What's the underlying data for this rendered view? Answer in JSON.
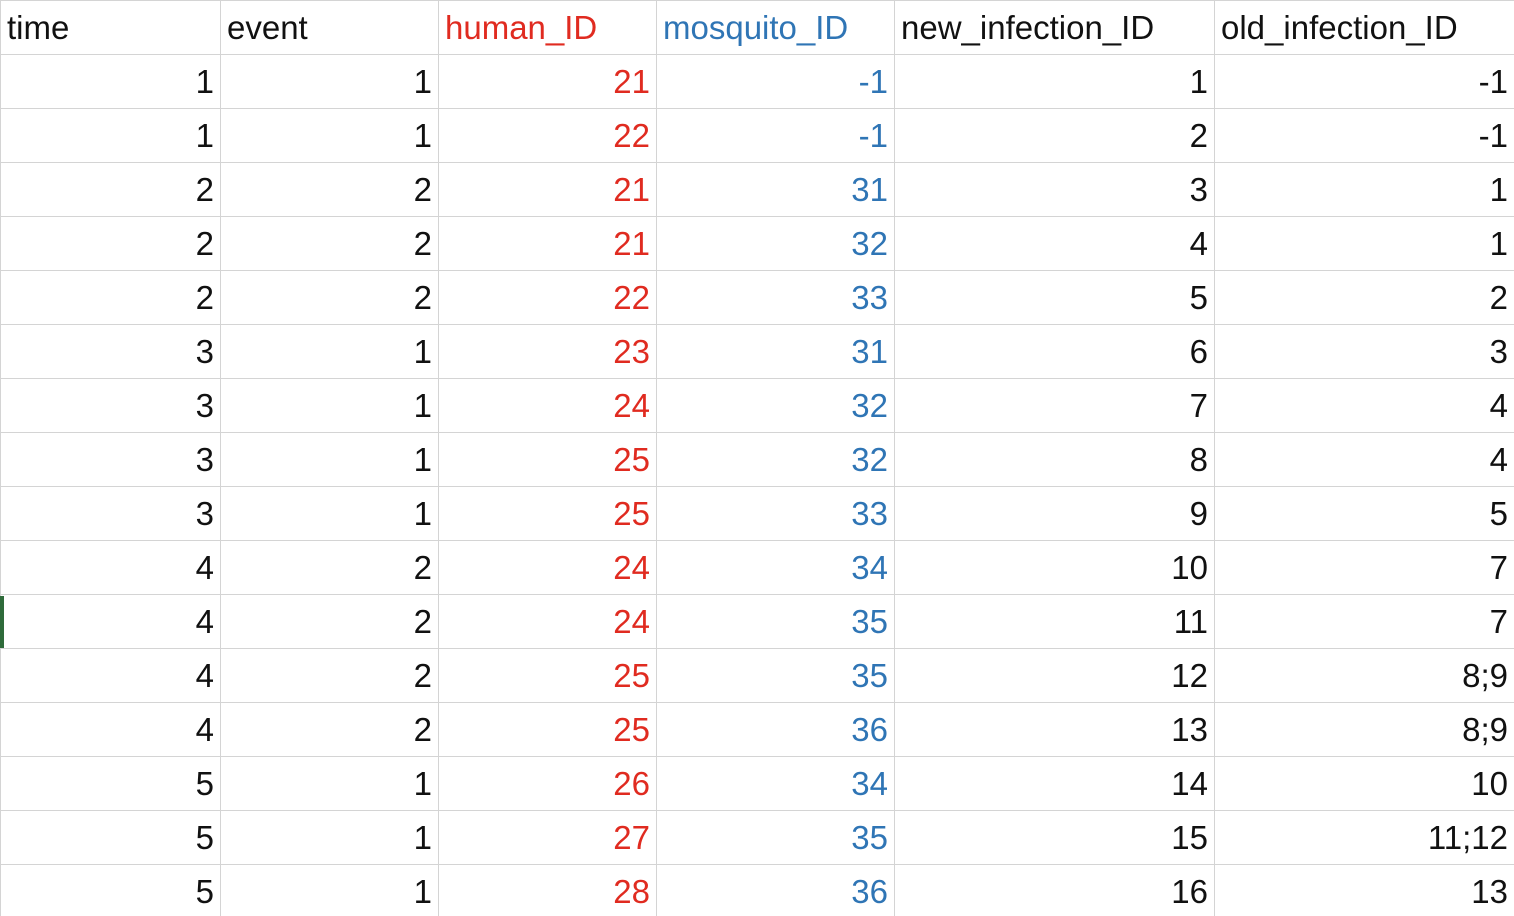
{
  "colors": {
    "default_text": "#111111",
    "human_id_text": "#e02b20",
    "mosquito_id_text": "#2f75b5",
    "gridline": "#d4d4d4",
    "active_row_marker": "#2e6b3a"
  },
  "columns": [
    {
      "key": "time",
      "label": "time",
      "color": "#111111"
    },
    {
      "key": "event",
      "label": "event",
      "color": "#111111"
    },
    {
      "key": "human_ID",
      "label": "human_ID",
      "color": "#e02b20"
    },
    {
      "key": "mosquito_ID",
      "label": "mosquito_ID",
      "color": "#2f75b5"
    },
    {
      "key": "new_infection_ID",
      "label": "new_infection_ID",
      "color": "#111111"
    },
    {
      "key": "old_infection_ID",
      "label": "old_infection_ID",
      "color": "#111111"
    }
  ],
  "rows": [
    [
      "1",
      "1",
      "21",
      "-1",
      "1",
      "-1"
    ],
    [
      "1",
      "1",
      "22",
      "-1",
      "2",
      "-1"
    ],
    [
      "2",
      "2",
      "21",
      "31",
      "3",
      "1"
    ],
    [
      "2",
      "2",
      "21",
      "32",
      "4",
      "1"
    ],
    [
      "2",
      "2",
      "22",
      "33",
      "5",
      "2"
    ],
    [
      "3",
      "1",
      "23",
      "31",
      "6",
      "3"
    ],
    [
      "3",
      "1",
      "24",
      "32",
      "7",
      "4"
    ],
    [
      "3",
      "1",
      "25",
      "32",
      "8",
      "4"
    ],
    [
      "3",
      "1",
      "25",
      "33",
      "9",
      "5"
    ],
    [
      "4",
      "2",
      "24",
      "34",
      "10",
      "7"
    ],
    [
      "4",
      "2",
      "24",
      "35",
      "11",
      "7"
    ],
    [
      "4",
      "2",
      "25",
      "35",
      "12",
      "8;9"
    ],
    [
      "4",
      "2",
      "25",
      "36",
      "13",
      "8;9"
    ],
    [
      "5",
      "1",
      "26",
      "34",
      "14",
      "10"
    ],
    [
      "5",
      "1",
      "27",
      "35",
      "15",
      "11;12"
    ],
    [
      "5",
      "1",
      "28",
      "36",
      "16",
      "13"
    ]
  ]
}
